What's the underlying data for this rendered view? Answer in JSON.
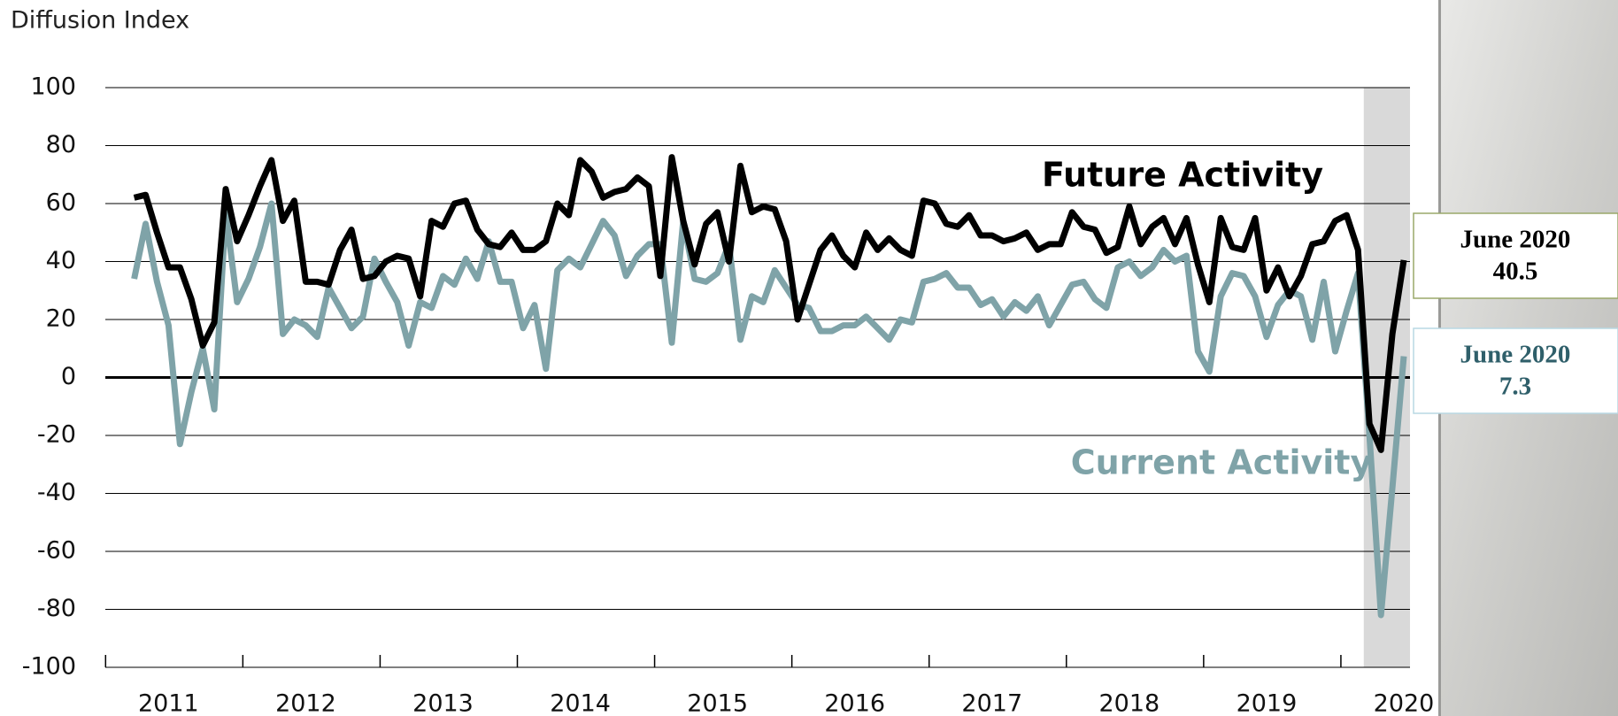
{
  "chart_data": {
    "type": "line",
    "y_label": "Diffusion Index",
    "ylim": [
      -100,
      100
    ],
    "yticks": [
      -100,
      -80,
      -60,
      -40,
      -20,
      0,
      20,
      40,
      60,
      80,
      100
    ],
    "grid": true,
    "categories": [
      null,
      null,
      null,
      "2011",
      null,
      null,
      null,
      null,
      null,
      null,
      null,
      null,
      null,
      null,
      null,
      "2012",
      null,
      null,
      null,
      null,
      null,
      null,
      null,
      null,
      null,
      null,
      null,
      "2013",
      null,
      null,
      null,
      null,
      null,
      null,
      null,
      null,
      null,
      null,
      null,
      "2014",
      null,
      null,
      null,
      null,
      null,
      null,
      null,
      null,
      null,
      null,
      null,
      "2015",
      null,
      null,
      null,
      null,
      null,
      null,
      null,
      null,
      null,
      null,
      null,
      "2016",
      null,
      null,
      null,
      null,
      null,
      null,
      null,
      null,
      null,
      null,
      null,
      "2017",
      null,
      null,
      null,
      null,
      null,
      null,
      null,
      null,
      null,
      null,
      null,
      "2018",
      null,
      null,
      null,
      null,
      null,
      null,
      null,
      null,
      null,
      null,
      null,
      "2019",
      null,
      null,
      null,
      null,
      null,
      null,
      null,
      null,
      null,
      null,
      null,
      "2020"
    ],
    "series": [
      {
        "name": "Future Activity",
        "color": "#000000",
        "values": [
          62,
          63,
          50,
          38,
          38,
          27,
          11,
          19,
          65,
          47,
          56,
          66,
          75,
          54,
          61,
          33,
          33,
          32,
          44,
          51,
          34,
          35,
          40,
          42,
          41,
          28,
          54,
          52,
          60,
          61,
          51,
          46,
          45,
          50,
          44,
          44,
          47,
          60,
          56,
          75,
          71,
          62,
          64,
          65,
          69,
          66,
          35,
          76,
          54,
          39,
          53,
          57,
          40,
          73,
          57,
          59,
          58,
          47,
          20,
          32,
          44,
          49,
          42,
          38,
          50,
          44,
          48,
          44,
          42,
          61,
          60,
          53,
          52,
          56,
          49,
          49,
          47,
          48,
          50,
          44,
          46,
          46,
          57,
          52,
          51,
          43,
          45,
          59,
          46,
          52,
          55,
          46,
          55,
          39,
          26,
          55,
          45,
          44,
          55,
          30,
          38,
          28,
          35,
          46,
          47,
          54,
          56,
          44,
          -16,
          -25,
          15,
          40.5
        ]
      },
      {
        "name": "Current Activity",
        "color": "#7fa3a8",
        "values": [
          34,
          53,
          33,
          18,
          -23,
          -5,
          10,
          -11,
          57,
          26,
          34,
          45,
          60,
          15,
          20,
          18,
          14,
          31,
          24,
          17,
          21,
          41,
          33,
          26,
          11,
          26,
          24,
          35,
          32,
          41,
          34,
          47,
          33,
          33,
          17,
          25,
          3,
          37,
          41,
          38,
          46,
          54,
          49,
          35,
          42,
          46,
          46,
          12,
          54,
          34,
          33,
          36,
          46,
          13,
          28,
          26,
          37,
          31,
          25,
          24,
          16,
          16,
          18,
          18,
          21,
          17,
          13,
          20,
          19,
          33,
          34,
          36,
          31,
          31,
          25,
          27,
          21,
          26,
          23,
          28,
          18,
          25,
          32,
          33,
          27,
          24,
          38,
          40,
          35,
          38,
          44,
          40,
          42,
          9,
          2,
          28,
          36,
          35,
          28,
          14,
          25,
          30,
          28,
          13,
          33,
          9,
          23,
          36,
          -20,
          -82,
          -38,
          7.3
        ]
      }
    ],
    "callouts": [
      {
        "label": "June 2020",
        "value": 40.5,
        "color": "#000000"
      },
      {
        "label": "June 2020",
        "value": 7.3,
        "color": "#2f5f6a"
      }
    ]
  }
}
